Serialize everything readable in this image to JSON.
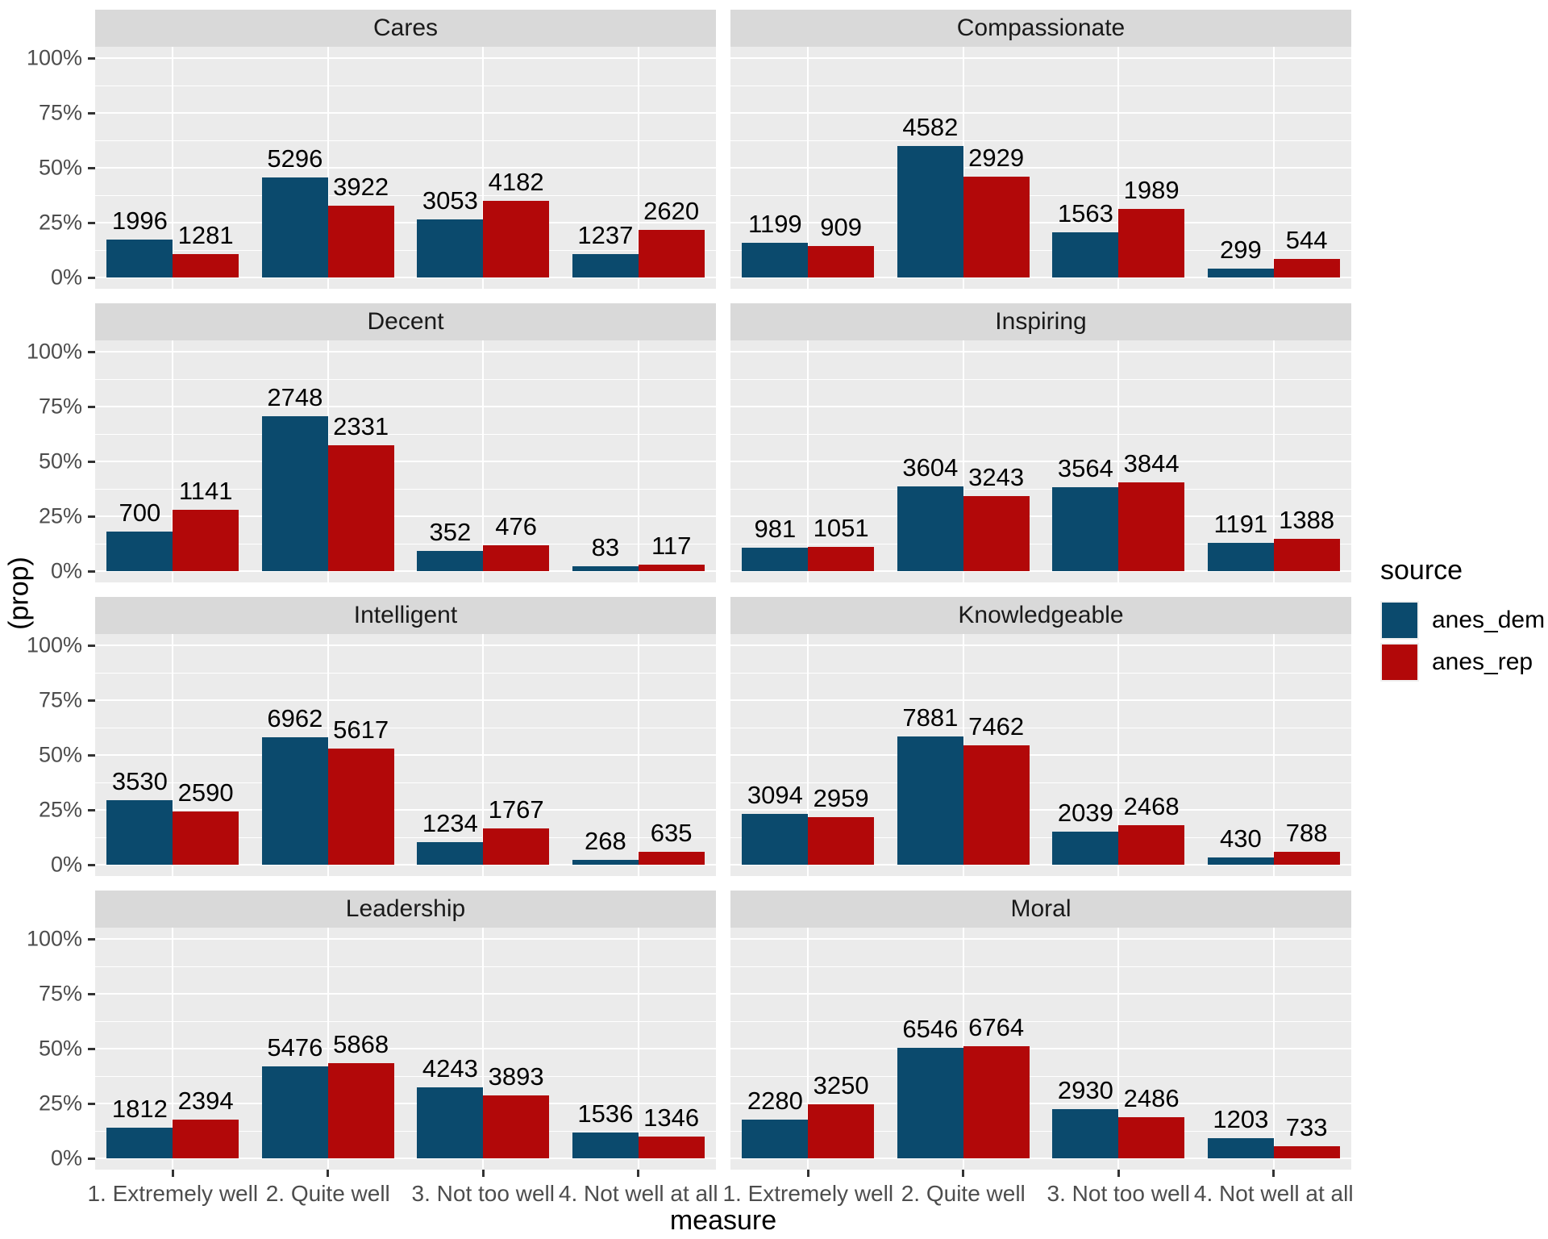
{
  "chart_data": {
    "type": "bar",
    "subtype": "dodged, faceted 4x2, y = within-facet within-source proportion of counts",
    "xlabel": "measure",
    "ylabel": "(prop)",
    "ylim": [
      0,
      100
    ],
    "y_ticks": [
      "0%",
      "25%",
      "50%",
      "75%",
      "100%"
    ],
    "y_tick_values": [
      0,
      25,
      50,
      75,
      100
    ],
    "grid": "white major and minor horizontal lines, white vertical lines at category centers, on grey panel",
    "legend_position": "right",
    "categories": [
      "1. Extremely well",
      "2. Quite well",
      "3. Not too well",
      "4. Not well at all"
    ],
    "series_names": [
      "anes_dem",
      "anes_rep"
    ],
    "colors": {
      "anes_dem": "#0B4A6D",
      "anes_rep": "#B20809"
    },
    "facets": [
      {
        "title": "Cares",
        "anes_dem": [
          1996,
          5296,
          3053,
          1237
        ],
        "anes_rep": [
          1281,
          3922,
          4182,
          2620
        ]
      },
      {
        "title": "Compassionate",
        "anes_dem": [
          1199,
          4582,
          1563,
          299
        ],
        "anes_rep": [
          909,
          2929,
          1989,
          544
        ]
      },
      {
        "title": "Decent",
        "anes_dem": [
          700,
          2748,
          352,
          83
        ],
        "anes_rep": [
          1141,
          2331,
          476,
          117
        ]
      },
      {
        "title": "Inspiring",
        "anes_dem": [
          981,
          3604,
          3564,
          1191
        ],
        "anes_rep": [
          1051,
          3243,
          3844,
          1388
        ]
      },
      {
        "title": "Intelligent",
        "anes_dem": [
          3530,
          6962,
          1234,
          268
        ],
        "anes_rep": [
          2590,
          5617,
          1767,
          635
        ]
      },
      {
        "title": "Knowledgeable",
        "anes_dem": [
          3094,
          7881,
          2039,
          430
        ],
        "anes_rep": [
          2959,
          7462,
          2468,
          788
        ]
      },
      {
        "title": "Leadership",
        "anes_dem": [
          1812,
          5476,
          4243,
          1536
        ],
        "anes_rep": [
          2394,
          5868,
          3893,
          1346
        ]
      },
      {
        "title": "Moral",
        "anes_dem": [
          2280,
          6546,
          2930,
          1203
        ],
        "anes_rep": [
          3250,
          6764,
          2486,
          733
        ]
      }
    ]
  },
  "legend": {
    "title": "source",
    "items": [
      {
        "label": "anes_dem",
        "color": "#0B4A6D"
      },
      {
        "label": "anes_rep",
        "color": "#B20809"
      }
    ]
  }
}
